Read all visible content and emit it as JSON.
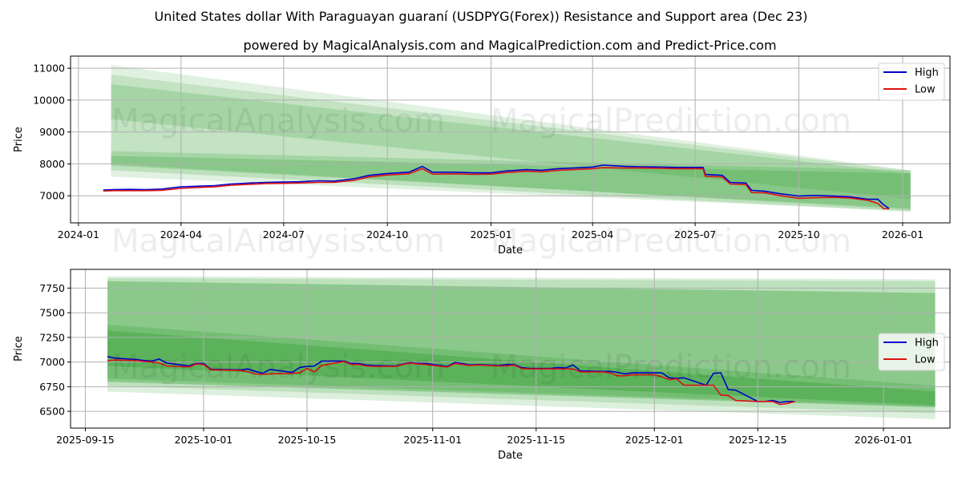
{
  "title": "United States dollar With Paraguayan guaraní (USDPYG(Forex)) Resistance and Support area (Dec 23)",
  "subtitle": "powered by MagicalAnalysis.com and MagicalPrediction.com and Predict-Price.com",
  "watermarks": [
    "MagicalAnalysis.com",
    "MagicalPrediction.com"
  ],
  "colors": {
    "high": "#0000cc",
    "low": "#dd1111",
    "band": "#2e9e2e"
  },
  "chart_data": [
    {
      "type": "line",
      "xlabel": "Date",
      "ylabel": "Price",
      "xlim": [
        "2023-12-25",
        "2026-02-12"
      ],
      "ylim": [
        6150,
        11380
      ],
      "xticks": [
        "2024-01",
        "2024-04",
        "2024-07",
        "2024-10",
        "2025-01",
        "2025-04",
        "2025-07",
        "2025-10",
        "2026-01"
      ],
      "xtick_dates": [
        "2024-01-01",
        "2024-04-01",
        "2024-07-01",
        "2024-10-01",
        "2025-01-01",
        "2025-04-01",
        "2025-07-01",
        "2025-10-01",
        "2026-01-01"
      ],
      "yticks": [
        7000,
        8000,
        9000,
        10000,
        11000
      ],
      "legend": {
        "placement": "top-right",
        "entries": [
          "High",
          "Low"
        ]
      },
      "band_range": [
        "2024-01-30",
        "2026-01-08"
      ],
      "bands": [
        {
          "start": [
            7600,
            11100
          ],
          "end": [
            6520,
            7800
          ],
          "opacity": 0.14
        },
        {
          "start": [
            8000,
            10800
          ],
          "end": [
            6560,
            7780
          ],
          "opacity": 0.16
        },
        {
          "start": [
            9400,
            10500
          ],
          "end": [
            6900,
            7700
          ],
          "opacity": 0.2
        },
        {
          "start": [
            7800,
            8400
          ],
          "end": [
            6500,
            7800
          ],
          "opacity": 0.2
        },
        {
          "start": [
            7950,
            8250
          ],
          "end": [
            6600,
            7700
          ],
          "opacity": 0.25
        }
      ],
      "dates": [
        "2024-01-23",
        "2024-02-01",
        "2024-02-15",
        "2024-03-01",
        "2024-03-15",
        "2024-04-01",
        "2024-04-15",
        "2024-05-01",
        "2024-05-15",
        "2024-06-01",
        "2024-06-15",
        "2024-07-01",
        "2024-07-15",
        "2024-08-01",
        "2024-08-15",
        "2024-09-01",
        "2024-09-15",
        "2024-10-01",
        "2024-10-20",
        "2024-11-01",
        "2024-11-10",
        "2024-12-01",
        "2024-12-15",
        "2025-01-01",
        "2025-01-15",
        "2025-02-01",
        "2025-02-15",
        "2025-03-01",
        "2025-03-15",
        "2025-04-01",
        "2025-04-10",
        "2025-05-01",
        "2025-05-15",
        "2025-06-01",
        "2025-06-15",
        "2025-07-01",
        "2025-07-08",
        "2025-07-10",
        "2025-07-25",
        "2025-08-01",
        "2025-08-15",
        "2025-08-20",
        "2025-09-01",
        "2025-09-15",
        "2025-10-01",
        "2025-10-15",
        "2025-11-01",
        "2025-11-15",
        "2025-12-01",
        "2025-12-10",
        "2025-12-15",
        "2025-12-20"
      ],
      "high": [
        7180,
        7190,
        7200,
        7190,
        7210,
        7280,
        7300,
        7320,
        7370,
        7400,
        7420,
        7430,
        7440,
        7470,
        7460,
        7530,
        7640,
        7700,
        7740,
        7920,
        7740,
        7740,
        7720,
        7720,
        7780,
        7820,
        7800,
        7850,
        7870,
        7900,
        7960,
        7920,
        7910,
        7900,
        7890,
        7890,
        7890,
        7670,
        7640,
        7420,
        7400,
        7170,
        7140,
        7060,
        6990,
        7010,
        6990,
        6970,
        6890,
        6890,
        6720,
        6600
      ],
      "low": [
        7150,
        7160,
        7160,
        7160,
        7170,
        7230,
        7260,
        7280,
        7330,
        7360,
        7380,
        7390,
        7400,
        7420,
        7420,
        7480,
        7590,
        7650,
        7690,
        7850,
        7680,
        7690,
        7670,
        7680,
        7730,
        7770,
        7750,
        7800,
        7820,
        7850,
        7880,
        7870,
        7870,
        7860,
        7850,
        7850,
        7850,
        7610,
        7590,
        7370,
        7350,
        7100,
        7090,
        7000,
        6920,
        6940,
        6950,
        6930,
        6860,
        6760,
        6600,
        6590
      ]
    },
    {
      "type": "line",
      "xlabel": "Date",
      "ylabel": "Price",
      "xlim": [
        "2025-09-13",
        "2026-01-10"
      ],
      "ylim": [
        6330,
        7940
      ],
      "xticks": [
        "2025-09-15",
        "2025-10-01",
        "2025-10-15",
        "2025-11-01",
        "2025-11-15",
        "2025-12-01",
        "2025-12-15",
        "2026-01-01"
      ],
      "yticks": [
        6500,
        6750,
        7000,
        7250,
        7500,
        7750
      ],
      "legend": {
        "placement": "center-right",
        "entries": [
          "High",
          "Low"
        ]
      },
      "band_range": [
        "2025-09-18",
        "2026-01-08"
      ],
      "bands": [
        {
          "start": [
            6700,
            7870
          ],
          "end": [
            6420,
            7840
          ],
          "opacity": 0.16
        },
        {
          "start": [
            6760,
            7850
          ],
          "end": [
            6480,
            7820
          ],
          "opacity": 0.18
        },
        {
          "start": [
            6800,
            7820
          ],
          "end": [
            6540,
            7700
          ],
          "opacity": 0.35
        },
        {
          "start": [
            6830,
            7380
          ],
          "end": [
            6550,
            6760
          ],
          "opacity": 0.25
        },
        {
          "start": [
            6960,
            7320
          ],
          "end": [
            6560,
            6700
          ],
          "opacity": 0.35
        }
      ],
      "dates": [
        "2025-09-18",
        "2025-09-19",
        "2025-09-22",
        "2025-09-23",
        "2025-09-24",
        "2025-09-25",
        "2025-09-26",
        "2025-09-29",
        "2025-09-30",
        "2025-10-01",
        "2025-10-02",
        "2025-10-03",
        "2025-10-06",
        "2025-10-07",
        "2025-10-08",
        "2025-10-09",
        "2025-10-10",
        "2025-10-13",
        "2025-10-14",
        "2025-10-15",
        "2025-10-16",
        "2025-10-17",
        "2025-10-20",
        "2025-10-21",
        "2025-10-22",
        "2025-10-23",
        "2025-10-24",
        "2025-10-27",
        "2025-10-28",
        "2025-10-29",
        "2025-10-30",
        "2025-10-31",
        "2025-11-03",
        "2025-11-04",
        "2025-11-05",
        "2025-11-06",
        "2025-11-07",
        "2025-11-10",
        "2025-11-11",
        "2025-11-12",
        "2025-11-13",
        "2025-11-14",
        "2025-11-17",
        "2025-11-18",
        "2025-11-19",
        "2025-11-20",
        "2025-11-21",
        "2025-11-24",
        "2025-11-25",
        "2025-11-26",
        "2025-11-27",
        "2025-11-28",
        "2025-12-01",
        "2025-12-02",
        "2025-12-03",
        "2025-12-04",
        "2025-12-05",
        "2025-12-08",
        "2025-12-09",
        "2025-12-10",
        "2025-12-11",
        "2025-12-12",
        "2025-12-15",
        "2025-12-16",
        "2025-12-17",
        "2025-12-18",
        "2025-12-19",
        "2025-12-20"
      ],
      "high": [
        7055,
        7040,
        7025,
        7015,
        7010,
        7030,
        6990,
        6960,
        6985,
        6985,
        6925,
        6925,
        6920,
        6930,
        6905,
        6885,
        6925,
        6895,
        6945,
        6955,
        6960,
        7010,
        7010,
        6985,
        6985,
        6970,
        6965,
        6960,
        6980,
        6995,
        6985,
        6985,
        6955,
        6995,
        6985,
        6970,
        6975,
        6965,
        6975,
        6975,
        6945,
        6935,
        6935,
        6945,
        6940,
        6970,
        6910,
        6905,
        6905,
        6895,
        6880,
        6890,
        6890,
        6890,
        6840,
        6835,
        6840,
        6765,
        6885,
        6890,
        6720,
        6715,
        6600,
        6600,
        6610,
        6590,
        6600,
        6600
      ],
      "low": [
        7015,
        7020,
        7015,
        7005,
        7000,
        6990,
        6960,
        6950,
        6980,
        6975,
        6920,
        6920,
        6915,
        6900,
        6880,
        6875,
        6880,
        6885,
        6890,
        6935,
        6900,
        6965,
        7005,
        6975,
        6975,
        6960,
        6955,
        6955,
        6975,
        6990,
        6980,
        6975,
        6950,
        6985,
        6975,
        6965,
        6970,
        6960,
        6960,
        6970,
        6935,
        6930,
        6930,
        6930,
        6930,
        6930,
        6900,
        6900,
        6890,
        6860,
        6860,
        6870,
        6870,
        6850,
        6820,
        6830,
        6765,
        6765,
        6765,
        6665,
        6660,
        6610,
        6600,
        6600,
        6600,
        6570,
        6580,
        6600
      ]
    }
  ]
}
